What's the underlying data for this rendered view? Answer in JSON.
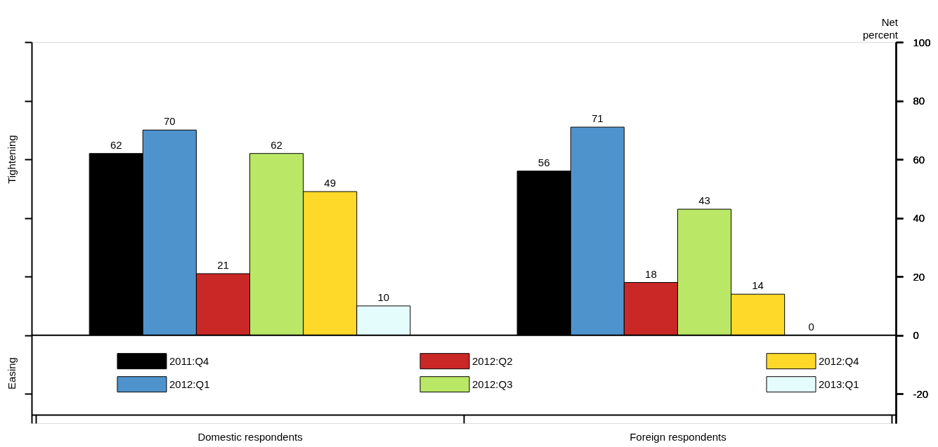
{
  "chart_data": {
    "type": "bar",
    "ylabel": "Tightening",
    "y2label": "Net percent",
    "categories": [
      "Domestic respondents",
      "Foreign respondents"
    ],
    "series": [
      {
        "name": "2011:Q4",
        "color": "#000000",
        "values": [
          62,
          56
        ]
      },
      {
        "name": "2012:Q1",
        "color": "#4f93cd",
        "values": [
          70,
          71
        ]
      },
      {
        "name": "2012:Q2",
        "color": "#c92826",
        "values": [
          21,
          18
        ]
      },
      {
        "name": "2012:Q3",
        "color": "#bae766",
        "values": [
          62,
          43
        ]
      },
      {
        "name": "2012:Q4",
        "color": "#ffd92a",
        "values": [
          49,
          14
        ]
      },
      {
        "name": "2013:Q1",
        "color": "#e4fcfc",
        "values": [
          10,
          0
        ]
      }
    ],
    "annotations": [
      "Easing"
    ],
    "ylim": [
      -30,
      100
    ],
    "yticks": [
      -20,
      0,
      20,
      40,
      60,
      80,
      100
    ],
    "ref_lines": [
      {
        "axis": "y",
        "value": 0
      }
    ],
    "data_labels": true,
    "legend": "bottom",
    "grid": false
  }
}
